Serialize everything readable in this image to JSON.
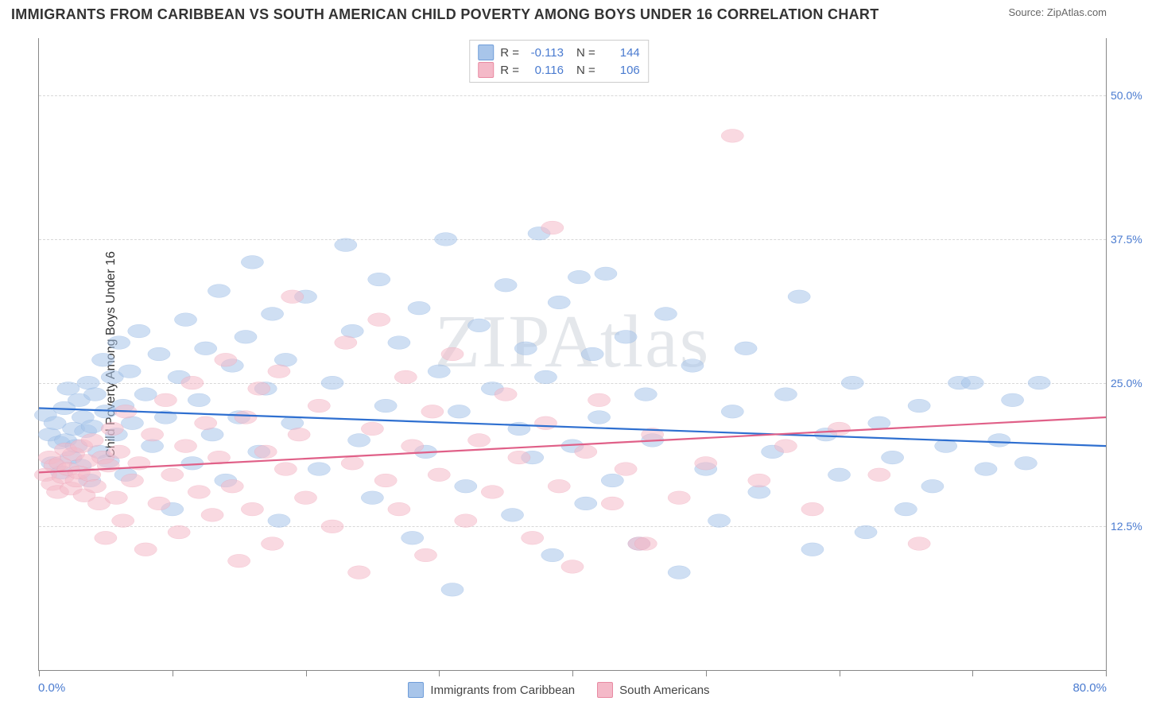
{
  "title": "IMMIGRANTS FROM CARIBBEAN VS SOUTH AMERICAN CHILD POVERTY AMONG BOYS UNDER 16 CORRELATION CHART",
  "source_label": "Source: ZipAtlas.com",
  "watermark": "ZIPAtlas",
  "chart": {
    "type": "scatter",
    "ylabel": "Child Poverty Among Boys Under 16",
    "xlim": [
      0,
      80
    ],
    "ylim": [
      0,
      55
    ],
    "x_min_label": "0.0%",
    "x_max_label": "80.0%",
    "ytick_values": [
      12.5,
      25.0,
      37.5,
      50.0
    ],
    "ytick_labels": [
      "12.5%",
      "25.0%",
      "37.5%",
      "50.0%"
    ],
    "xtick_values": [
      0,
      10,
      20,
      30,
      40,
      50,
      60,
      70,
      80
    ],
    "grid_color": "#d8d8d8",
    "axis_color": "#888888",
    "tick_label_color": "#4a7bd0",
    "background_color": "#ffffff",
    "marker_radius": 9,
    "marker_opacity": 0.55,
    "series": [
      {
        "name": "Immigrants from Caribbean",
        "fill": "#a8c5ea",
        "stroke": "#6f9dd9",
        "line_color": "#2e6fd0",
        "R": "-0.113",
        "N": "144",
        "trend": {
          "y_at_xmin": 22.8,
          "y_at_xmax": 19.5
        },
        "points": [
          [
            0.5,
            22.2
          ],
          [
            0.8,
            20.5
          ],
          [
            1.0,
            18.0
          ],
          [
            1.2,
            21.5
          ],
          [
            1.5,
            19.8
          ],
          [
            1.7,
            17.2
          ],
          [
            1.9,
            22.8
          ],
          [
            2.0,
            20.0
          ],
          [
            2.2,
            24.5
          ],
          [
            2.4,
            18.5
          ],
          [
            2.6,
            21.0
          ],
          [
            2.8,
            19.5
          ],
          [
            3.0,
            23.5
          ],
          [
            3.1,
            17.8
          ],
          [
            3.3,
            22.0
          ],
          [
            3.5,
            20.8
          ],
          [
            3.7,
            25.0
          ],
          [
            3.8,
            16.5
          ],
          [
            4.0,
            21.2
          ],
          [
            4.2,
            24.0
          ],
          [
            4.5,
            19.0
          ],
          [
            4.8,
            27.0
          ],
          [
            5.0,
            22.5
          ],
          [
            5.2,
            18.2
          ],
          [
            5.5,
            25.5
          ],
          [
            5.8,
            20.5
          ],
          [
            6.0,
            28.5
          ],
          [
            6.3,
            23.0
          ],
          [
            6.5,
            17.0
          ],
          [
            6.8,
            26.0
          ],
          [
            7.0,
            21.5
          ],
          [
            7.5,
            29.5
          ],
          [
            8.0,
            24.0
          ],
          [
            8.5,
            19.5
          ],
          [
            9.0,
            27.5
          ],
          [
            9.5,
            22.0
          ],
          [
            10.0,
            14.0
          ],
          [
            10.5,
            25.5
          ],
          [
            11.0,
            30.5
          ],
          [
            11.5,
            18.0
          ],
          [
            12.0,
            23.5
          ],
          [
            12.5,
            28.0
          ],
          [
            13.0,
            20.5
          ],
          [
            13.5,
            33.0
          ],
          [
            14.0,
            16.5
          ],
          [
            14.5,
            26.5
          ],
          [
            15.0,
            22.0
          ],
          [
            15.5,
            29.0
          ],
          [
            16.0,
            35.5
          ],
          [
            16.5,
            19.0
          ],
          [
            17.0,
            24.5
          ],
          [
            17.5,
            31.0
          ],
          [
            18.0,
            13.0
          ],
          [
            18.5,
            27.0
          ],
          [
            19.0,
            21.5
          ],
          [
            20.0,
            32.5
          ],
          [
            21.0,
            17.5
          ],
          [
            22.0,
            25.0
          ],
          [
            23.0,
            37.0
          ],
          [
            23.5,
            29.5
          ],
          [
            24.0,
            20.0
          ],
          [
            25.0,
            15.0
          ],
          [
            25.5,
            34.0
          ],
          [
            26.0,
            23.0
          ],
          [
            27.0,
            28.5
          ],
          [
            28.0,
            11.5
          ],
          [
            28.5,
            31.5
          ],
          [
            29.0,
            19.0
          ],
          [
            30.0,
            26.0
          ],
          [
            30.5,
            37.5
          ],
          [
            31.0,
            7.0
          ],
          [
            31.5,
            22.5
          ],
          [
            32.0,
            16.0
          ],
          [
            33.0,
            30.0
          ],
          [
            34.0,
            24.5
          ],
          [
            35.0,
            33.5
          ],
          [
            35.5,
            13.5
          ],
          [
            36.0,
            21.0
          ],
          [
            36.5,
            28.0
          ],
          [
            37.0,
            18.5
          ],
          [
            37.5,
            38.0
          ],
          [
            38.0,
            25.5
          ],
          [
            38.5,
            10.0
          ],
          [
            39.0,
            32.0
          ],
          [
            40.0,
            19.5
          ],
          [
            40.5,
            34.2
          ],
          [
            41.0,
            14.5
          ],
          [
            41.5,
            27.5
          ],
          [
            42.0,
            22.0
          ],
          [
            42.5,
            34.5
          ],
          [
            43.0,
            16.5
          ],
          [
            44.0,
            29.0
          ],
          [
            45.0,
            11.0
          ],
          [
            45.5,
            24.0
          ],
          [
            46.0,
            20.0
          ],
          [
            47.0,
            31.0
          ],
          [
            48.0,
            8.5
          ],
          [
            49.0,
            26.5
          ],
          [
            50.0,
            17.5
          ],
          [
            51.0,
            13.0
          ],
          [
            52.0,
            22.5
          ],
          [
            53.0,
            28.0
          ],
          [
            54.0,
            15.5
          ],
          [
            55.0,
            19.0
          ],
          [
            56.0,
            24.0
          ],
          [
            57.0,
            32.5
          ],
          [
            58.0,
            10.5
          ],
          [
            59.0,
            20.5
          ],
          [
            60.0,
            17.0
          ],
          [
            61.0,
            25.0
          ],
          [
            62.0,
            12.0
          ],
          [
            63.0,
            21.5
          ],
          [
            64.0,
            18.5
          ],
          [
            65.0,
            14.0
          ],
          [
            66.0,
            23.0
          ],
          [
            67.0,
            16.0
          ],
          [
            68.0,
            19.5
          ],
          [
            69.0,
            25.0
          ],
          [
            70.0,
            25.0
          ],
          [
            71.0,
            17.5
          ],
          [
            72.0,
            20.0
          ],
          [
            73.0,
            23.5
          ],
          [
            74.0,
            18.0
          ],
          [
            75.0,
            25.0
          ]
        ]
      },
      {
        "name": "South Americans",
        "fill": "#f4b9c8",
        "stroke": "#e88aa2",
        "line_color": "#e06088",
        "R": "0.116",
        "N": "106",
        "trend": {
          "y_at_xmin": 17.2,
          "y_at_xmax": 22.0
        },
        "points": [
          [
            0.5,
            17.0
          ],
          [
            0.8,
            18.5
          ],
          [
            1.0,
            16.2
          ],
          [
            1.2,
            17.8
          ],
          [
            1.4,
            15.5
          ],
          [
            1.6,
            18.0
          ],
          [
            1.8,
            16.8
          ],
          [
            2.0,
            19.2
          ],
          [
            2.2,
            17.5
          ],
          [
            2.4,
            15.8
          ],
          [
            2.6,
            18.8
          ],
          [
            2.8,
            16.5
          ],
          [
            3.0,
            17.2
          ],
          [
            3.2,
            19.5
          ],
          [
            3.4,
            15.2
          ],
          [
            3.6,
            18.2
          ],
          [
            3.8,
            17.0
          ],
          [
            4.0,
            20.0
          ],
          [
            4.2,
            16.0
          ],
          [
            4.5,
            14.5
          ],
          [
            4.8,
            18.5
          ],
          [
            5.0,
            11.5
          ],
          [
            5.2,
            17.8
          ],
          [
            5.5,
            21.0
          ],
          [
            5.8,
            15.0
          ],
          [
            6.0,
            19.0
          ],
          [
            6.3,
            13.0
          ],
          [
            6.5,
            22.5
          ],
          [
            7.0,
            16.5
          ],
          [
            7.5,
            18.0
          ],
          [
            8.0,
            10.5
          ],
          [
            8.5,
            20.5
          ],
          [
            9.0,
            14.5
          ],
          [
            9.5,
            23.5
          ],
          [
            10.0,
            17.0
          ],
          [
            10.5,
            12.0
          ],
          [
            11.0,
            19.5
          ],
          [
            11.5,
            25.0
          ],
          [
            12.0,
            15.5
          ],
          [
            12.5,
            21.5
          ],
          [
            13.0,
            13.5
          ],
          [
            13.5,
            18.5
          ],
          [
            14.0,
            27.0
          ],
          [
            14.5,
            16.0
          ],
          [
            15.0,
            9.5
          ],
          [
            15.5,
            22.0
          ],
          [
            16.0,
            14.0
          ],
          [
            16.5,
            24.5
          ],
          [
            17.0,
            19.0
          ],
          [
            17.5,
            11.0
          ],
          [
            18.0,
            26.0
          ],
          [
            18.5,
            17.5
          ],
          [
            19.0,
            32.5
          ],
          [
            19.5,
            20.5
          ],
          [
            20.0,
            15.0
          ],
          [
            21.0,
            23.0
          ],
          [
            22.0,
            12.5
          ],
          [
            23.0,
            28.5
          ],
          [
            23.5,
            18.0
          ],
          [
            24.0,
            8.5
          ],
          [
            25.0,
            21.0
          ],
          [
            25.5,
            30.5
          ],
          [
            26.0,
            16.5
          ],
          [
            27.0,
            14.0
          ],
          [
            27.5,
            25.5
          ],
          [
            28.0,
            19.5
          ],
          [
            29.0,
            10.0
          ],
          [
            29.5,
            22.5
          ],
          [
            30.0,
            17.0
          ],
          [
            31.0,
            27.5
          ],
          [
            32.0,
            13.0
          ],
          [
            33.0,
            20.0
          ],
          [
            34.0,
            15.5
          ],
          [
            35.0,
            24.0
          ],
          [
            36.0,
            18.5
          ],
          [
            37.0,
            11.5
          ],
          [
            38.0,
            21.5
          ],
          [
            38.5,
            38.5
          ],
          [
            39.0,
            16.0
          ],
          [
            40.0,
            9.0
          ],
          [
            41.0,
            19.0
          ],
          [
            42.0,
            23.5
          ],
          [
            43.0,
            14.5
          ],
          [
            44.0,
            17.5
          ],
          [
            45.0,
            11.0
          ],
          [
            45.5,
            11.0
          ],
          [
            46.0,
            20.5
          ],
          [
            48.0,
            15.0
          ],
          [
            50.0,
            18.0
          ],
          [
            52.0,
            46.5
          ],
          [
            54.0,
            16.5
          ],
          [
            56.0,
            19.5
          ],
          [
            58.0,
            14.0
          ],
          [
            60.0,
            21.0
          ],
          [
            63.0,
            17.0
          ],
          [
            66.0,
            11.0
          ]
        ]
      }
    ],
    "bottom_legend": [
      {
        "label": "Immigrants from Caribbean",
        "fill": "#a8c5ea",
        "stroke": "#6f9dd9"
      },
      {
        "label": "South Americans",
        "fill": "#f4b9c8",
        "stroke": "#e88aa2"
      }
    ],
    "stat_legend": {
      "R_label": "R =",
      "N_label": "N ="
    }
  }
}
